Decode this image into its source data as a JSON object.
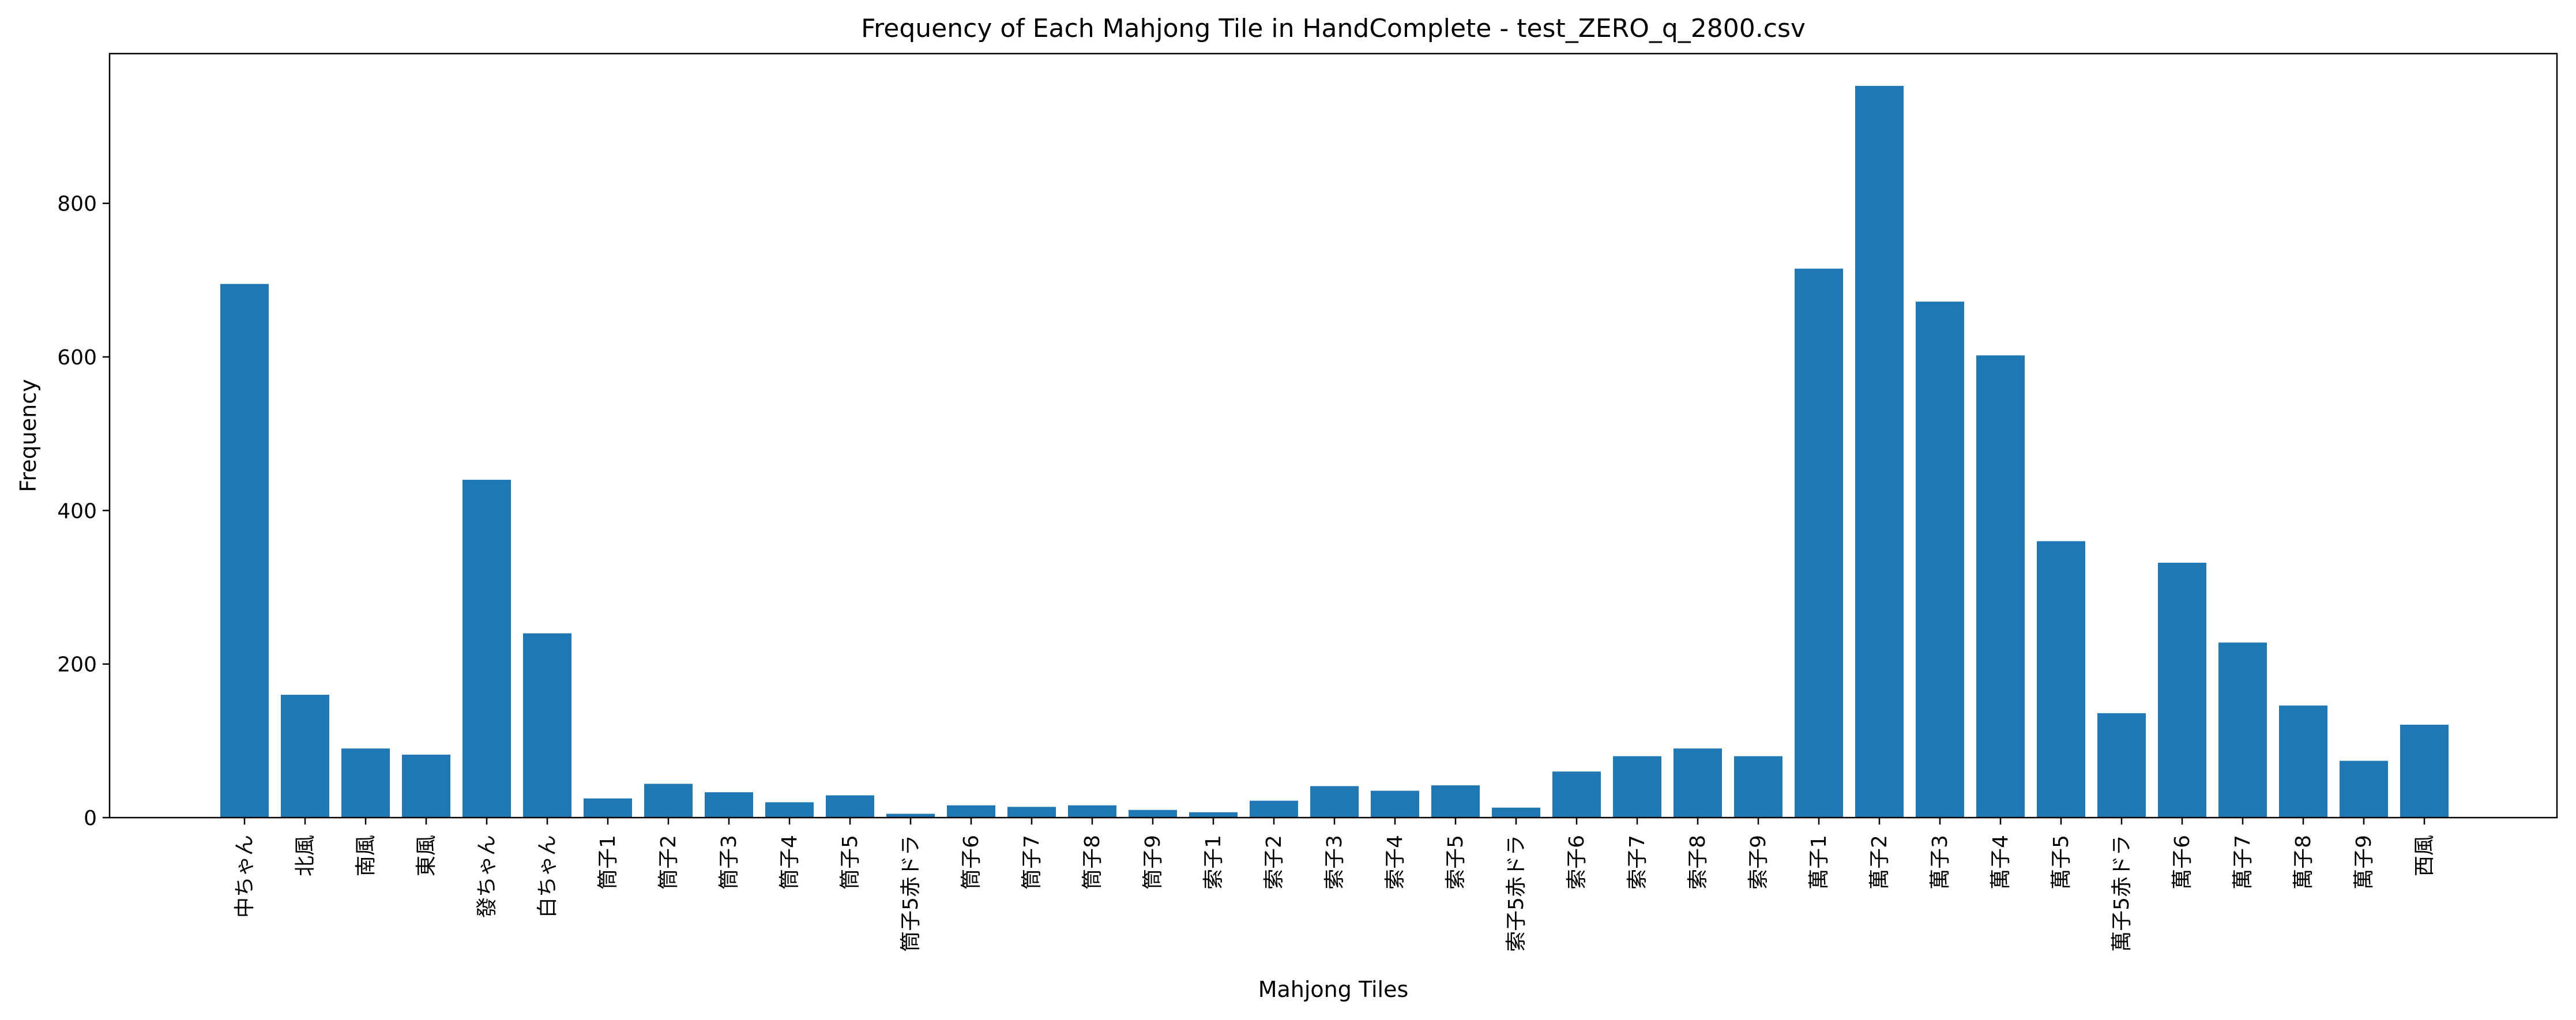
{
  "chart_data": {
    "type": "bar",
    "title": "Frequency of Each Mahjong Tile in HandComplete - test_ZERO_q_2800.csv",
    "xlabel": "Mahjong Tiles",
    "ylabel": "Frequency",
    "ylim": [
      0,
      995
    ],
    "yticks": [
      0,
      200,
      400,
      600,
      800
    ],
    "grid": false,
    "bar_color": "#1f77b4",
    "categories": [
      "中ちゃん",
      "北風",
      "南風",
      "東風",
      "發ちゃん",
      "白ちゃん",
      "筒子1",
      "筒子2",
      "筒子3",
      "筒子4",
      "筒子5",
      "筒子5赤ドラ",
      "筒子6",
      "筒子7",
      "筒子8",
      "筒子9",
      "索子1",
      "索子2",
      "索子3",
      "索子4",
      "索子5",
      "索子5赤ドラ",
      "索子6",
      "索子7",
      "索子8",
      "索子9",
      "萬子1",
      "萬子2",
      "萬子3",
      "萬子4",
      "萬子5",
      "萬子5赤ドラ",
      "萬子6",
      "萬子7",
      "萬子8",
      "萬子9",
      "西風"
    ],
    "values": [
      695,
      160,
      90,
      82,
      440,
      240,
      25,
      44,
      33,
      20,
      29,
      5,
      16,
      14,
      16,
      10,
      7,
      22,
      41,
      35,
      42,
      13,
      60,
      80,
      90,
      80,
      715,
      953,
      672,
      602,
      360,
      136,
      332,
      228,
      146,
      74,
      121
    ]
  }
}
